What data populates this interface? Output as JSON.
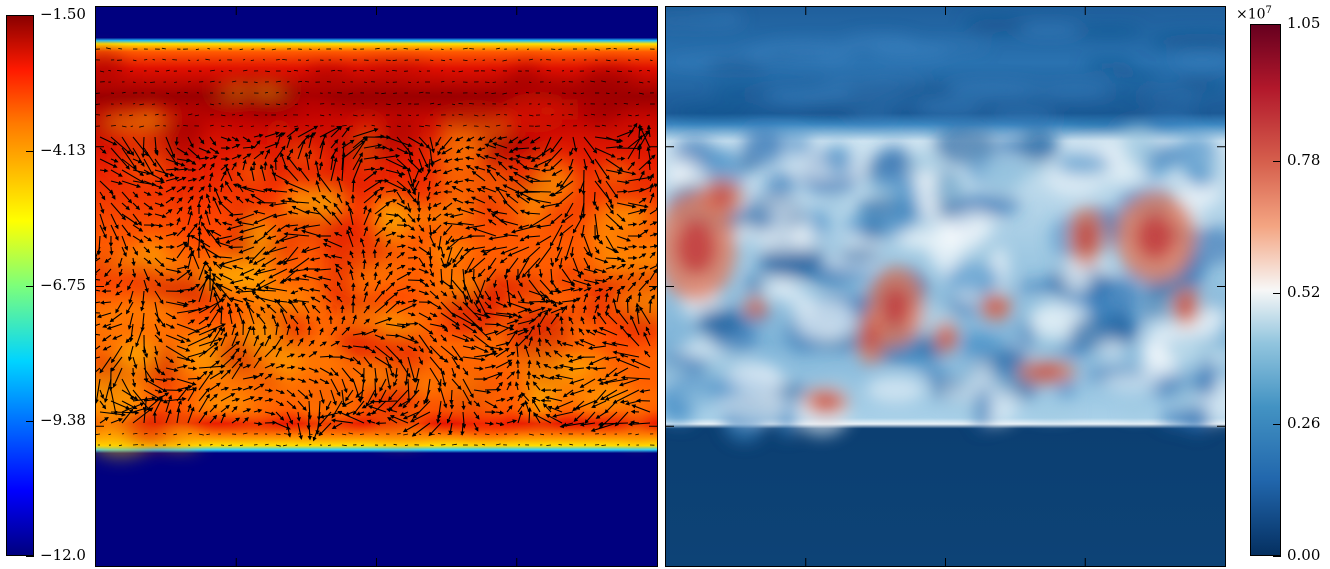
{
  "chart_data": [
    {
      "type": "heatmap",
      "title": "",
      "colormap": "jet",
      "colorbar": {
        "position": "left",
        "range": [
          -12.0,
          -1.5
        ],
        "ticks": [
          -1.5,
          -4.13,
          -6.75,
          -9.38,
          -12.0
        ],
        "tick_labels": [
          "−1.50",
          "−4.13",
          "−6.75",
          "−9.38",
          "−12.0"
        ]
      },
      "overlay": "velocity vector field (quiver)",
      "xlabel": "",
      "ylabel": ""
    },
    {
      "type": "heatmap",
      "title": "",
      "colormap": "RdBu_r",
      "colorbar": {
        "position": "right",
        "range": [
          0.0,
          1.05
        ],
        "multiplier": "×10",
        "multiplier_exponent": "7",
        "ticks": [
          1.05,
          0.78,
          0.52,
          0.26,
          0.0
        ],
        "tick_labels": [
          "1.05",
          "0.78",
          "0.52",
          "0.26",
          "0.00"
        ]
      },
      "xlabel": "",
      "ylabel": ""
    }
  ],
  "colors": {
    "jet": [
      "#00007f",
      "#0000ff",
      "#00b0ff",
      "#40ffb8",
      "#ffff00",
      "#ff9a00",
      "#ff2000",
      "#7f0000"
    ],
    "rdbu": [
      "#053061",
      "#2166ac",
      "#4393c3",
      "#92c5de",
      "#f7f7f7",
      "#f4a582",
      "#d6604d",
      "#b2182b",
      "#67001f"
    ]
  }
}
